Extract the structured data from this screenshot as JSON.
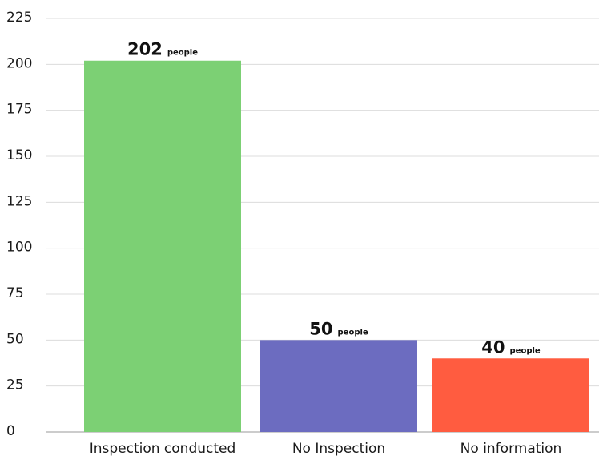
{
  "chart_data": {
    "type": "bar",
    "categories": [
      "Inspection conducted",
      "No Inspection",
      "No information"
    ],
    "values": [
      202,
      50,
      40
    ],
    "value_unit": "people",
    "colors": [
      "#7cd074",
      "#6c6cc0",
      "#ff5c40"
    ],
    "yticks": [
      0,
      25,
      50,
      75,
      100,
      125,
      150,
      175,
      200,
      225
    ],
    "ylim": [
      0,
      225
    ],
    "grid": true,
    "title": "",
    "xlabel": "",
    "ylabel": ""
  }
}
